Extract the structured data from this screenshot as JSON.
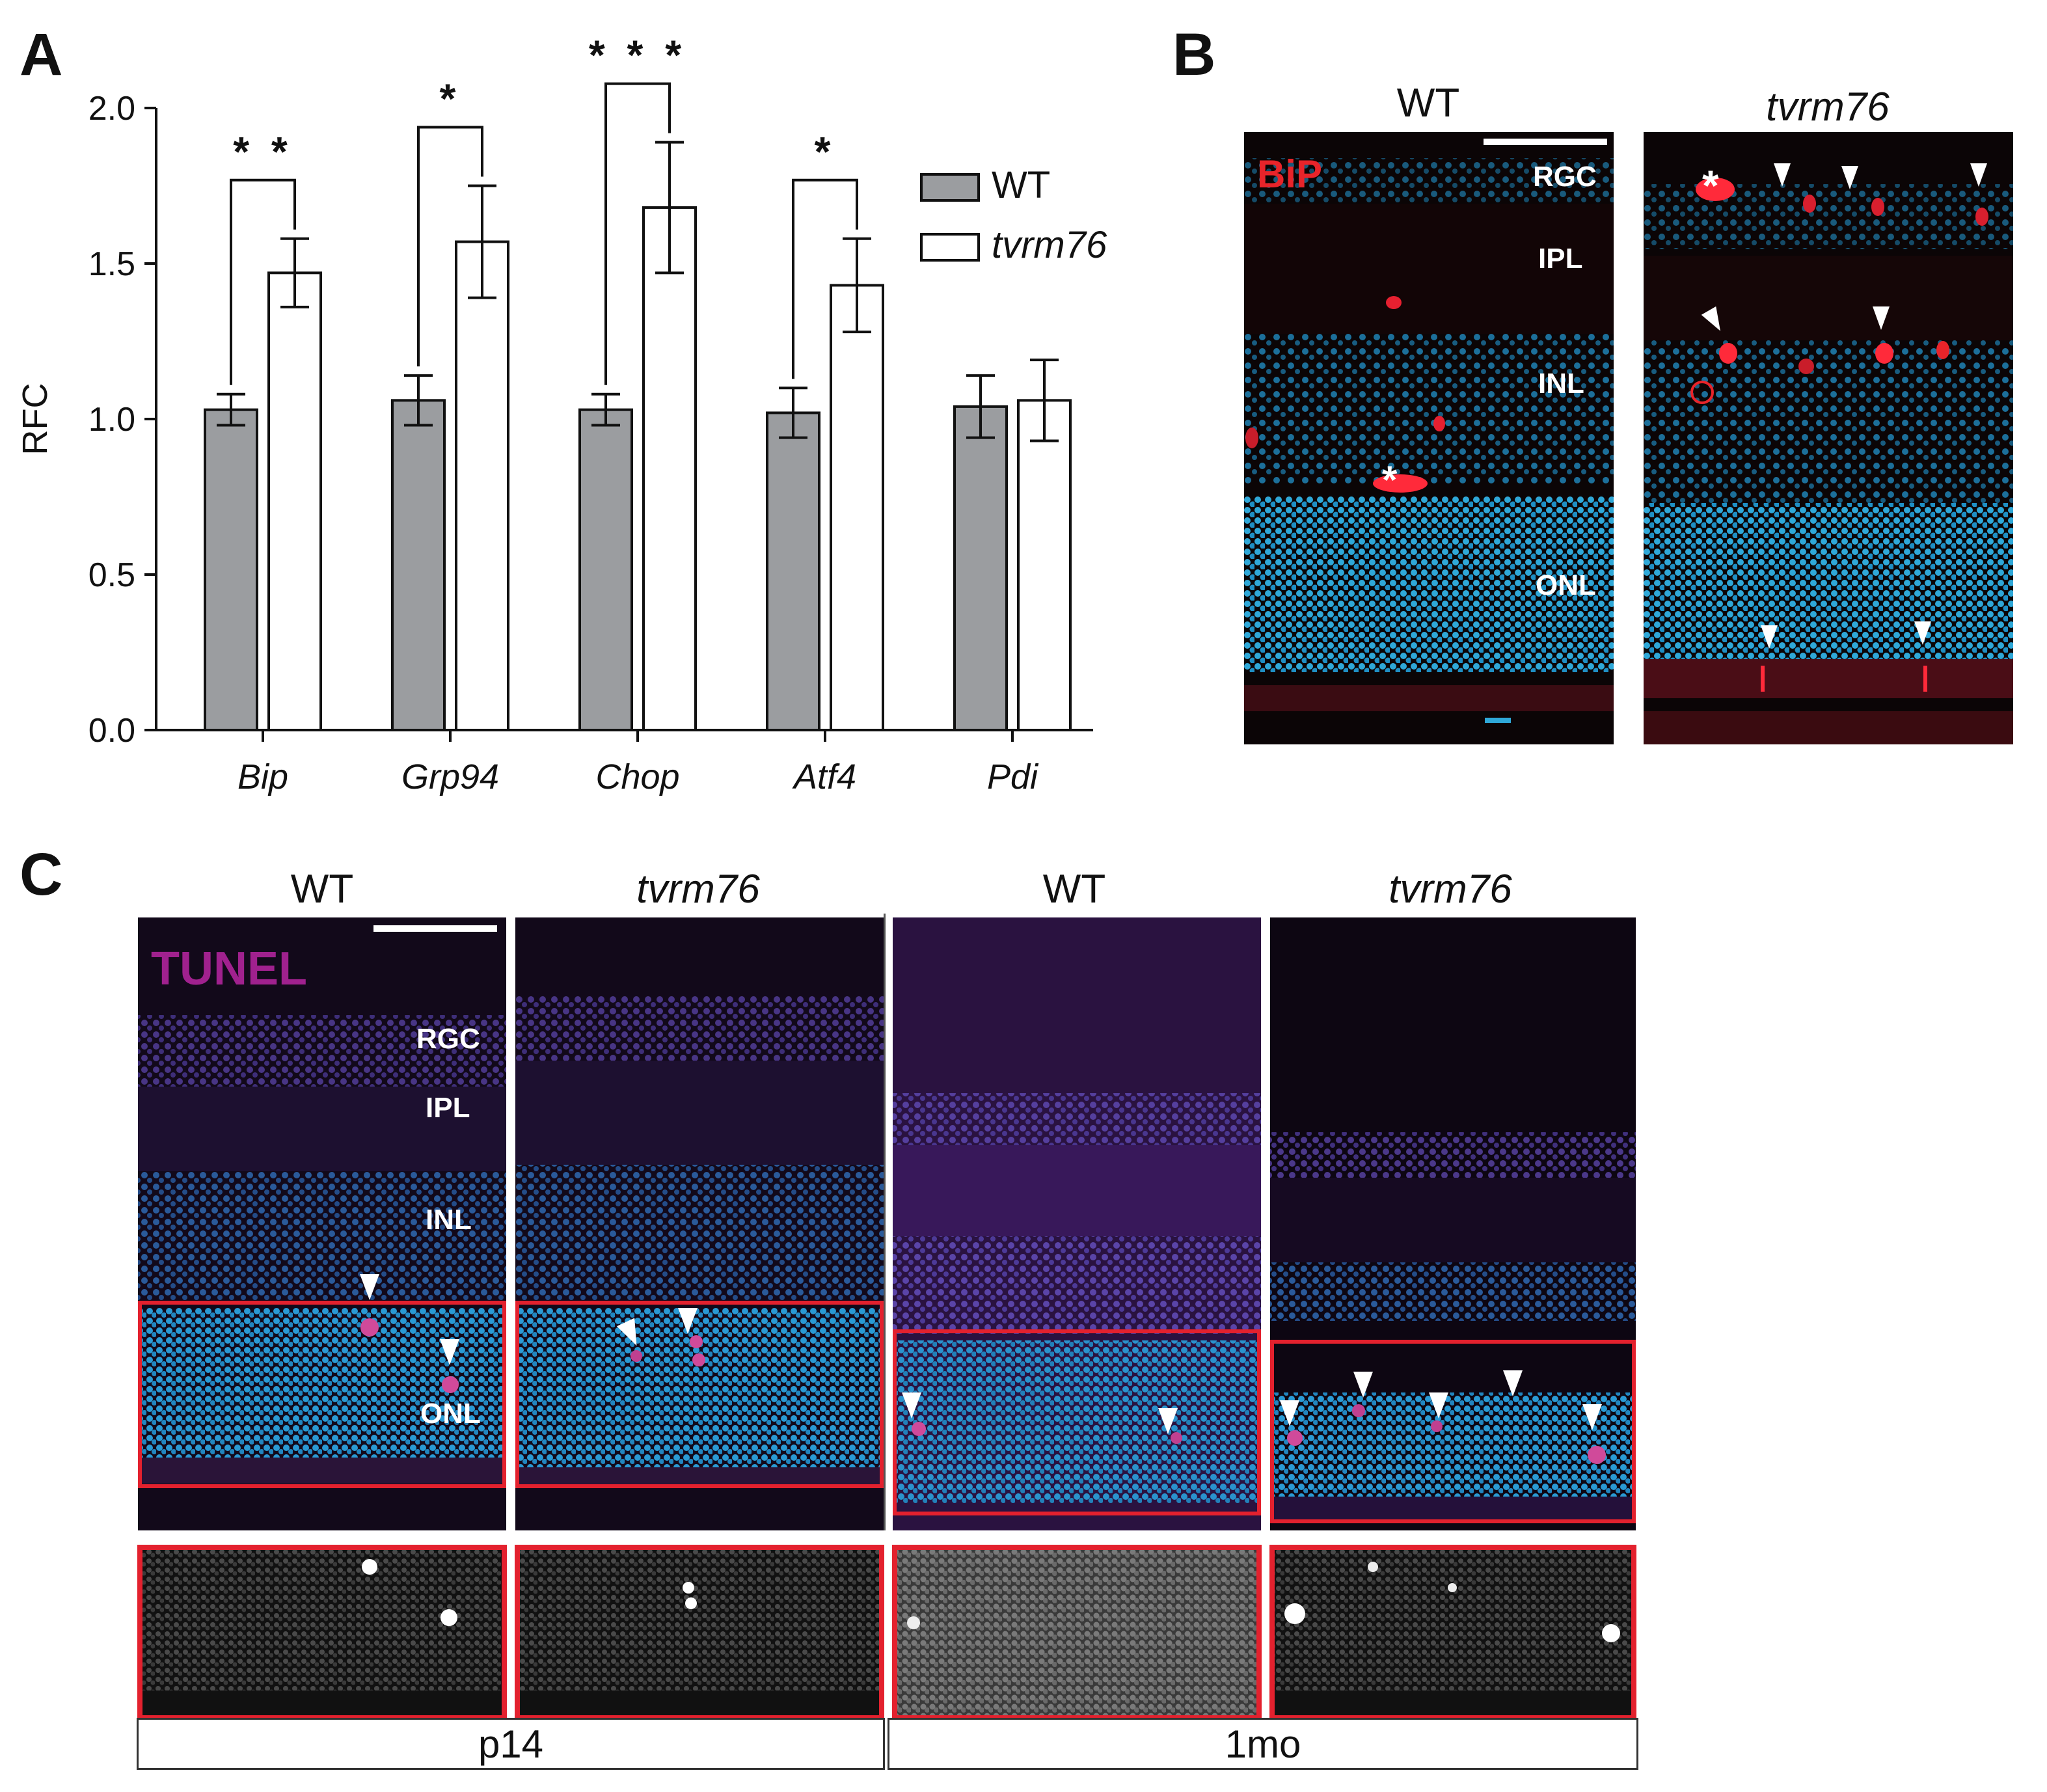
{
  "panel_labels": {
    "a": "A",
    "b": "B",
    "c": "C"
  },
  "chart_data": {
    "type": "bar",
    "ylabel": "RFC",
    "xlabel": "",
    "ylim": [
      0,
      2.0
    ],
    "yticks": [
      "0.0",
      "0.5",
      "1.0",
      "1.5",
      "2.0"
    ],
    "yticks_values": [
      0,
      0.5,
      1.0,
      1.5,
      2.0
    ],
    "categories": [
      "Bip",
      "Grp94",
      "Chop",
      "Atf4",
      "Pdi"
    ],
    "series": [
      {
        "name": "WT",
        "values": [
          1.03,
          1.06,
          1.03,
          1.02,
          1.04
        ],
        "errors": [
          0.05,
          0.08,
          0.05,
          0.08,
          0.1
        ],
        "color": "#9b9da0"
      },
      {
        "name": "tvrm76",
        "values": [
          1.47,
          1.57,
          1.68,
          1.43,
          1.06
        ],
        "errors": [
          0.11,
          0.18,
          0.21,
          0.15,
          0.13
        ],
        "color": "#ffffff"
      }
    ],
    "significance": [
      "* *",
      "*",
      "* * *",
      "*",
      ""
    ],
    "legend": [
      "WT",
      "tvrm76"
    ]
  },
  "panel_b": {
    "col_titles": [
      "WT",
      "tvrm76"
    ],
    "stain_label": "BiP",
    "layers": [
      "RGC",
      "IPL",
      "INL",
      "ONL"
    ],
    "stain_color": "#e8242a"
  },
  "panel_c": {
    "col_titles": [
      "WT",
      "tvrm76",
      "WT",
      "tvrm76"
    ],
    "stain_label": "TUNEL",
    "layers": [
      "RGC",
      "IPL",
      "INL",
      "ONL"
    ],
    "age_labels": [
      "p14",
      "1mo"
    ],
    "stain_color": "#a0218e"
  }
}
